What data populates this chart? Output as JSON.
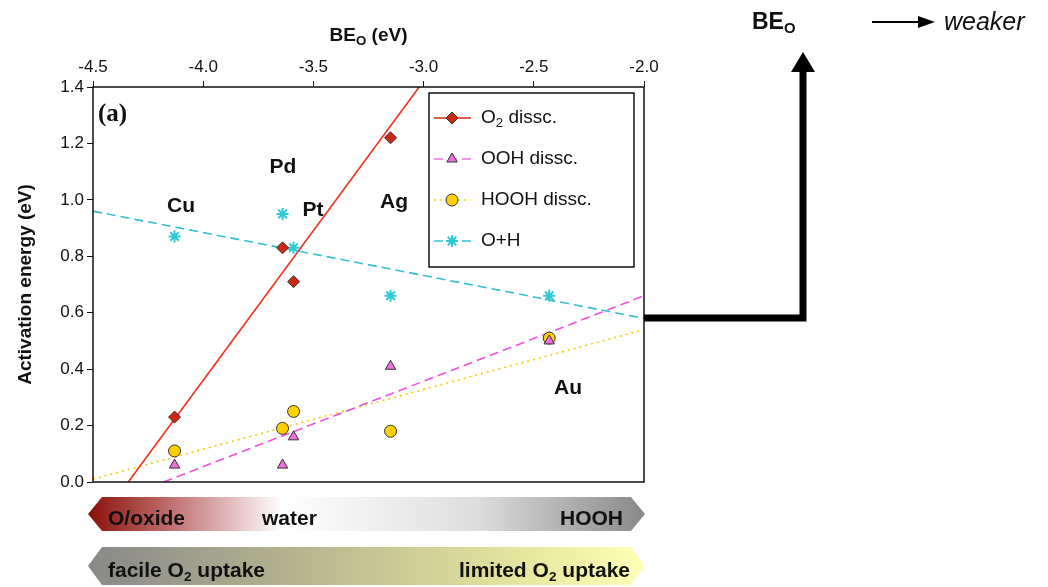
{
  "chart_data": {
    "type": "scatter",
    "xlabel": "BE$_{O}$ (eV)",
    "ylabel": "Activation energy (eV)",
    "xlim": [
      -4.5,
      -2.0
    ],
    "xticks": [
      {
        "value": -4.5,
        "label": "-4.5"
      },
      {
        "value": -4.0,
        "label": "-4.0"
      },
      {
        "value": -3.5,
        "label": "-3.5"
      },
      {
        "value": -3.0,
        "label": "-3.0"
      },
      {
        "value": -2.5,
        "label": "-2.5"
      },
      {
        "value": -2.0,
        "label": "-2.0"
      }
    ],
    "ylim": [
      0,
      1.4
    ],
    "yticks": [
      {
        "value": 0,
        "label": "0.0"
      },
      {
        "value": 0.2,
        "label": "0.2"
      },
      {
        "value": 0.4,
        "label": "0.4"
      },
      {
        "value": 0.6,
        "label": "0.6"
      },
      {
        "value": 0.8,
        "label": "0.8"
      },
      {
        "value": 1.0,
        "label": "1.0"
      },
      {
        "value": 1.2,
        "label": "1.2"
      },
      {
        "value": 1.4,
        "label": "1.4"
      }
    ],
    "grid": false,
    "legend": "top right",
    "series": [
      {
        "name": "O$_{2}$ dissc.",
        "marker": "diamond",
        "line_style": "solid",
        "color": "#d02810",
        "x": [
          -4.13,
          -3.64,
          -3.59,
          -3.15
        ],
        "values": [
          0.23,
          0.83,
          0.71,
          1.22
        ]
      },
      {
        "name": "OOH dissc.",
        "marker": "triangle",
        "line_style": "dashed",
        "color": "#f070e0",
        "x": [
          -4.13,
          -3.64,
          -3.59,
          -3.15,
          -2.43
        ],
        "values": [
          0.06,
          0.06,
          0.16,
          0.41,
          0.5
        ]
      },
      {
        "name": "HOOH dissc.",
        "marker": "circle",
        "line_style": "dotted",
        "color": "#ffd000",
        "x": [
          -4.13,
          -3.64,
          -3.59,
          -3.15,
          -2.43
        ],
        "values": [
          0.11,
          0.19,
          0.25,
          0.18,
          0.51
        ]
      },
      {
        "name": "O+H",
        "marker": "cross",
        "line_style": "dashed",
        "color": "#30c8d8",
        "x": [
          -4.13,
          -3.64,
          -3.59,
          -3.15,
          -2.43
        ],
        "values": [
          0.87,
          0.95,
          0.83,
          0.66,
          0.66
        ]
      },
      {
        "type": "line",
        "marker": "none",
        "line_style": "solid",
        "color": "#f03020",
        "x": [
          -4.34,
          -3.02
        ],
        "values": [
          0,
          1.4
        ]
      },
      {
        "type": "line",
        "marker": "none",
        "line_style": "dashed",
        "color": "#f050e0",
        "x": [
          -4.18,
          -2.0
        ],
        "values": [
          0,
          0.66
        ]
      },
      {
        "type": "line",
        "marker": "none",
        "line_style": "dotted",
        "color": "#f8c800",
        "x": [
          -4.5,
          -2.0
        ],
        "values": [
          0.01,
          0.54
        ]
      },
      {
        "type": "line",
        "marker": "none",
        "line_style": "dashed",
        "color": "#30c0d0",
        "x": [
          -4.5,
          -2.0
        ],
        "values": [
          0.96,
          0.58
        ]
      }
    ],
    "annotations": [
      "(a)",
      "Cu",
      "Pd",
      "Pt",
      "Ag",
      "Au",
      "O/oxide",
      "water",
      "HOOH",
      "facile O$_{2}$ uptake",
      "limited O$_{2}$ uptake",
      "BE$_{O}$",
      "weaker"
    ]
  }
}
